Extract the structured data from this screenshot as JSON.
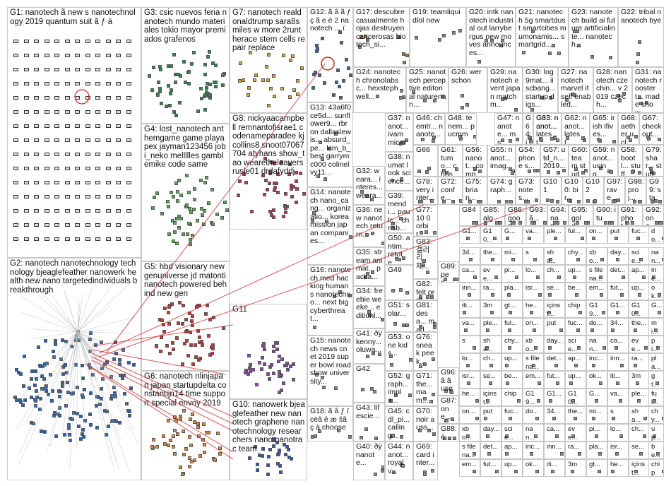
{
  "groups": [
    {
      "id": "G1",
      "label": "G1: nanotech ã new s nanotechnology 2019 quantum suit ã ƒ à",
      "color": "#4a4a8a",
      "nodes": 180
    },
    {
      "id": "G2",
      "label": "G2: nanotech nanotechnology technology bjeaglefeather nanowerk health new nano targetedindividuals breakthrough",
      "color": "#2266bb",
      "nodes": 160
    },
    {
      "id": "G3",
      "label": "G3: csic nuevos feria nanotech mundo materiales tokio mayor premiados grafenos",
      "color": "#2a8a4a",
      "nodes": 60
    },
    {
      "id": "G4",
      "label": "G4: lost_nanotech anthemgame game playapex jayman123456 jobi_neko mellllles gamblemike code same",
      "color": "#55aa55",
      "nodes": 55
    },
    {
      "id": "G5",
      "label": "G5: hbd visionary newgenuniverse jd matonti nanotech powered behind new gen",
      "color": "#cc3333",
      "nodes": 60
    },
    {
      "id": "G6",
      "label": "G6: nanotech nlinjapan japan startupdelta constantijn14 time support special envoy 2019",
      "color": "#dd8833",
      "nodes": 50
    },
    {
      "id": "G7",
      "label": "G7: nanotech realdonaldtrump sara8smiles w more 2runtherace stem cells repair replace",
      "color": "#ddaa33",
      "nodes": 25
    },
    {
      "id": "G8",
      "label": "G8: nickyaacampbell remnantofisrae1 codenameparadee kjcollins8 snoot07067704 atyhans show_tao wearetheleavers rusle01 drdafyddj",
      "color": "#bb3355",
      "nodes": 45
    },
    {
      "id": "G9",
      "label": "G9",
      "color": "#5566cc",
      "nodes": 45
    },
    {
      "id": "G10",
      "label": "G10: nanowerk bjeaglefeather new nanotech graphene nanotechnology researchers nano nanotrac team",
      "color": "#3355bb",
      "nodes": 28
    },
    {
      "id": "G11",
      "label": "G11",
      "color": "#8844aa",
      "nodes": 45
    },
    {
      "id": "G12",
      "label": "G12: ã â ã ƒ ç ã e é 2 nanotech ... ï",
      "color": "#336699",
      "nodes": 20
    },
    {
      "id": "G13",
      "label": "G13: 43a6f0ce5d... sunflower9... rbron dallaslewis... absurd_pe... kim_b_best garrymc000 colinelvy11...",
      "color": "#888888",
      "nodes": 6
    },
    {
      "id": "G14",
      "label": "G14: nanotech nano_cang... organizatio... korea mission japan companies...",
      "color": "#888888",
      "nodes": 4
    },
    {
      "id": "G15",
      "label": "G15: nanotech news cnet 2019 super bowl roadshow university...",
      "color": "#888888",
      "nodes": 4
    },
    {
      "id": "G16",
      "label": "G16: nanotech med hacking humans nanotechno... next big cyberthreat...",
      "color": "#888888",
      "nodes": 4
    },
    {
      "id": "G17",
      "label": "G17: descubre casualmente hojas destruyen cancerosas biotech_si...",
      "color": "#aa7733",
      "nodes": 8
    },
    {
      "id": "G18",
      "label": "G18: ã â ƒ ï cëã ê æ šã ç à choose",
      "color": "#888888",
      "nodes": 5
    },
    {
      "id": "G19",
      "label": "G19: teamliquidlol new",
      "color": "#888888",
      "nodes": 5
    },
    {
      "id": "G20",
      "label": "G20: intk nanotech industrial out larrybergus new moves announces...",
      "color": "#888888",
      "nodes": 5
    },
    {
      "id": "G21",
      "label": "G21: nanotech 5g smartdust smartcities mumonamis... smartgrid...",
      "color": "#888888",
      "nodes": 5
    },
    {
      "id": "G22",
      "label": "G22: tribal nanotech bye",
      "color": "#888888",
      "nodes": 3
    },
    {
      "id": "G23",
      "label": "G23: nanotech build ai future artificialinte... nanotech...",
      "color": "#888888",
      "nodes": 5
    },
    {
      "id": "G24",
      "label": "G24: nanotech chronolabsc... hexsteph well...",
      "color": "#888888",
      "nodes": 4
    },
    {
      "id": "G25",
      "label": "G25: nanotech perceptive editorial naturenan...",
      "color": "#888888",
      "nodes": 4
    },
    {
      "id": "G26",
      "label": "G26: wer schon",
      "color": "#888888",
      "nodes": 3
    },
    {
      "id": "G27",
      "label": "G27: nanotech marvel itself enabled...",
      "color": "#888888",
      "nodes": 3
    },
    {
      "id": "G28",
      "label": "G28: nanotech czechin... v 2019 czech...",
      "color": "#888888",
      "nodes": 3
    },
    {
      "id": "G29",
      "label": "G29: nanotech event japan matchm...",
      "color": "#888888",
      "nodes": 3
    },
    {
      "id": "G30",
      "label": "G30: log9mat... iiscbang... startup digs...",
      "color": "#888888",
      "nodes": 3
    },
    {
      "id": "G31",
      "label": "G31: nanotech roostert... made show...",
      "color": "#888888",
      "nodes": 3
    },
    {
      "id": "G32",
      "label": "G32: weara... interes... weara...",
      "color": "#888888",
      "nodes": 3
    },
    {
      "id": "G33",
      "label": "G33: nanot... latest...",
      "color": "#888888",
      "nodes": 3
    },
    {
      "id": "G34",
      "label": "G34: freebie weeke... editionl...",
      "color": "#888888",
      "nodes": 3
    },
    {
      "id": "G35",
      "label": "G35: stream animat... packa...",
      "color": "#888888",
      "nodes": 3
    },
    {
      "id": "G36",
      "label": "G36: new nanotech return...",
      "color": "#888888",
      "nodes": 3
    },
    {
      "id": "G37",
      "label": "G37: nanot... ivam micro",
      "color": "#888888",
      "nodes": 3
    },
    {
      "id": "G38",
      "label": "G38: numat look science...",
      "color": "#888888",
      "nodes": 3
    },
    {
      "id": "G39",
      "label": "G39: mendi... paulc... chrisb...",
      "color": "#888888",
      "nodes": 3
    },
    {
      "id": "G40",
      "label": "G40: ðÿ nanote...",
      "color": "#888888",
      "nodes": 3
    },
    {
      "id": "G41",
      "label": "G41: ðÿ kenny... oluwa...",
      "color": "#888888",
      "nodes": 3
    },
    {
      "id": "G42",
      "label": "G42",
      "color": "#888888",
      "nodes": 3
    },
    {
      "id": "G43",
      "label": "G43: lifescie...",
      "color": "#888888",
      "nodes": 3
    },
    {
      "id": "G44",
      "label": "G44: nanot... royalv...",
      "color": "#888888",
      "nodes": 3
    },
    {
      "id": "G45",
      "label": "G45: cdl_pi... calling...",
      "color": "#888888",
      "nodes": 3
    },
    {
      "id": "G46",
      "label": "G46: chemtr... nanote...",
      "color": "#888888",
      "nodes": 3
    },
    {
      "id": "G47",
      "label": "G47: nanote... ms...",
      "color": "#888888",
      "nodes": 3
    },
    {
      "id": "G48",
      "label": "G48: tenem... pucmm",
      "color": "#888888",
      "nodes": 3
    },
    {
      "id": "G49",
      "label": "G49",
      "color": "#888888",
      "nodes": 3
    },
    {
      "id": "G50",
      "label": "G50: antim... retote...",
      "color": "#888888",
      "nodes": 3
    },
    {
      "id": "G51",
      "label": "G51: solar...",
      "color": "#888888",
      "nodes": 3
    },
    {
      "id": "G52",
      "label": "G52: graph... impla...",
      "color": "#888888",
      "nodes": 3
    },
    {
      "id": "G53",
      "label": "G53: one kids...",
      "color": "#888888",
      "nodes": 3
    },
    {
      "id": "G54",
      "label": "G54: phone s...",
      "color": "#888888",
      "nodes": 3
    },
    {
      "id": "G55",
      "label": "G55: nanot... imag...",
      "color": "#888888",
      "nodes": 3
    },
    {
      "id": "G56",
      "label": "G56: nanot... comp...",
      "color": "#888888",
      "nodes": 3
    },
    {
      "id": "G57",
      "label": "G57: utd_n... 2019...",
      "color": "#888888",
      "nodes": 3
    },
    {
      "id": "G58",
      "label": "G58: bootl... stuff...",
      "color": "#888888",
      "nodes": 3
    },
    {
      "id": "G59",
      "label": "G59: nanot... using...",
      "color": "#888888",
      "nodes": 3
    },
    {
      "id": "G60",
      "label": "G60: team stude...",
      "color": "#888888",
      "nodes": 3
    },
    {
      "id": "G61",
      "label": "G61: tumo... christ...",
      "color": "#888888",
      "nodes": 3
    },
    {
      "id": "G62",
      "label": "G62: nanot... latest...",
      "color": "#888888",
      "nodes": 3
    },
    {
      "id": "G63",
      "label": "G63: nanot...",
      "color": "#888888",
      "nodes": 3
    },
    {
      "id": "G64",
      "label": "G64: iãG63",
      "color": "#888888",
      "nodes": 3
    },
    {
      "id": "G65",
      "label": "G65: irish ifives...",
      "color": "#888888",
      "nodes": 3
    },
    {
      "id": "G66",
      "label": "G66",
      "color": "#888888",
      "nodes": 3
    },
    {
      "id": "G67",
      "label": "G67: check out...",
      "color": "#888888",
      "nodes": 3
    },
    {
      "id": "G68",
      "label": "G68: aether ucl...",
      "color": "#888888",
      "nodes": 3
    },
    {
      "id": "G69",
      "label": "G69: card inter...",
      "color": "#888888",
      "nodes": 3
    },
    {
      "id": "G70",
      "label": "G70: noir auss...",
      "color": "#888888",
      "nodes": 3
    },
    {
      "id": "G71",
      "label": "G71: the... mam...",
      "color": "#888888",
      "nodes": 3
    },
    {
      "id": "G72",
      "label": "G72: confe...",
      "color": "#888888",
      "nodes": 3
    },
    {
      "id": "G73",
      "label": "G73: notes...",
      "color": "#888888",
      "nodes": 3
    },
    {
      "id": "G74",
      "label": "G74: graph...",
      "color": "#888888",
      "nodes": 3
    },
    {
      "id": "G75",
      "label": "G75: brian...",
      "color": "#888888",
      "nodes": 3
    },
    {
      "id": "G76",
      "label": "G76: sneak peek...",
      "color": "#888888",
      "nodes": 3
    },
    {
      "id": "G77",
      "label": "G77: 10 0 orbit...",
      "color": "#888888",
      "nodes": 3
    },
    {
      "id": "G78",
      "label": "G78: very inter...",
      "color": "#888888",
      "nodes": 3
    },
    {
      "id": "G79",
      "label": "G79: shar... stuff...",
      "color": "#888888",
      "nodes": 3
    },
    {
      "id": "G81",
      "label": "G81: desa... mad...",
      "color": "#888888",
      "nodes": 3
    },
    {
      "id": "G82",
      "label": "G82: felt prot...",
      "color": "#888888",
      "nodes": 3
    },
    {
      "id": "G83",
      "label": "G83: 갤러 리채...",
      "color": "#888888",
      "nodes": 3
    },
    {
      "id": "G84",
      "label": "G84",
      "color": "#888888",
      "nodes": 3
    },
    {
      "id": "G85",
      "label": "G85: alga...",
      "color": "#888888",
      "nodes": 3
    },
    {
      "id": "G86",
      "label": "G86: good...",
      "color": "#888888",
      "nodes": 3
    },
    {
      "id": "G87",
      "label": "G87: one...",
      "color": "#888888",
      "nodes": 3
    },
    {
      "id": "G88",
      "label": "G88: é...",
      "color": "#888888",
      "nodes": 3
    },
    {
      "id": "G89",
      "label": "G89: peo...",
      "color": "#888888",
      "nodes": 3
    },
    {
      "id": "G90",
      "label": "G90: itu",
      "color": "#888888",
      "nodes": 3
    },
    {
      "id": "G91",
      "label": "G91: phot...",
      "color": "#888888",
      "nodes": 3
    },
    {
      "id": "G92",
      "label": "G92: one...",
      "color": "#888888",
      "nodes": 3
    },
    {
      "id": "G93",
      "label": "G93: ã...",
      "color": "#888888",
      "nodes": 3
    },
    {
      "id": "G94",
      "label": "G94: nan...",
      "color": "#888888",
      "nodes": 3
    },
    {
      "id": "G95",
      "label": "G95: gold...",
      "color": "#888888",
      "nodes": 3
    },
    {
      "id": "G96",
      "label": "G96: ã ã use",
      "color": "#888888",
      "nodes": 3
    },
    {
      "id": "G97",
      "label": "G97: rave...",
      "color": "#888888",
      "nodes": 3
    },
    {
      "id": "G98",
      "label": "G98: proj...",
      "color": "#888888",
      "nodes": 3
    },
    {
      "id": "G99",
      "label": "G99: star...",
      "color": "#888888",
      "nodes": 3
    },
    {
      "id": "G100",
      "label": "G100: bir...",
      "color": "#888888",
      "nodes": 3
    },
    {
      "id": "G101",
      "label": "G101",
      "color": "#888888",
      "nodes": 3
    },
    {
      "id": "G102",
      "label": "G102",
      "color": "#888888",
      "nodes": 3
    }
  ],
  "small_labels": [
    "G1...",
    "G10...",
    "G...",
    "va...",
    "ple...",
    "ful...",
    "on...",
    "put",
    "fuc...",
    "do...",
    "34...",
    "the...",
    "mi...",
    "s",
    "sha...",
    "chy...",
    "xbo...",
    "day...",
    "scie...",
    "nan...",
    "ca...",
    "eve...",
    "pi...",
    "lo...",
    "ch...",
    "up...",
    "s filena...",
    "det...",
    "ap...",
    "inc...",
    "inn...",
    "ra...",
    "pla...",
    "isr...",
    "se...",
    "be...",
    "em...",
    "fut...",
    "up...",
    "ok...",
    "iti...",
    "3m",
    "gt...",
    "he...",
    "içinst...",
    "chip",
    "G19..."
  ],
  "colors": {
    "border": "#c8c8c8",
    "edge_red": "#cc2222",
    "edge_gray": "#bbbbbb"
  }
}
